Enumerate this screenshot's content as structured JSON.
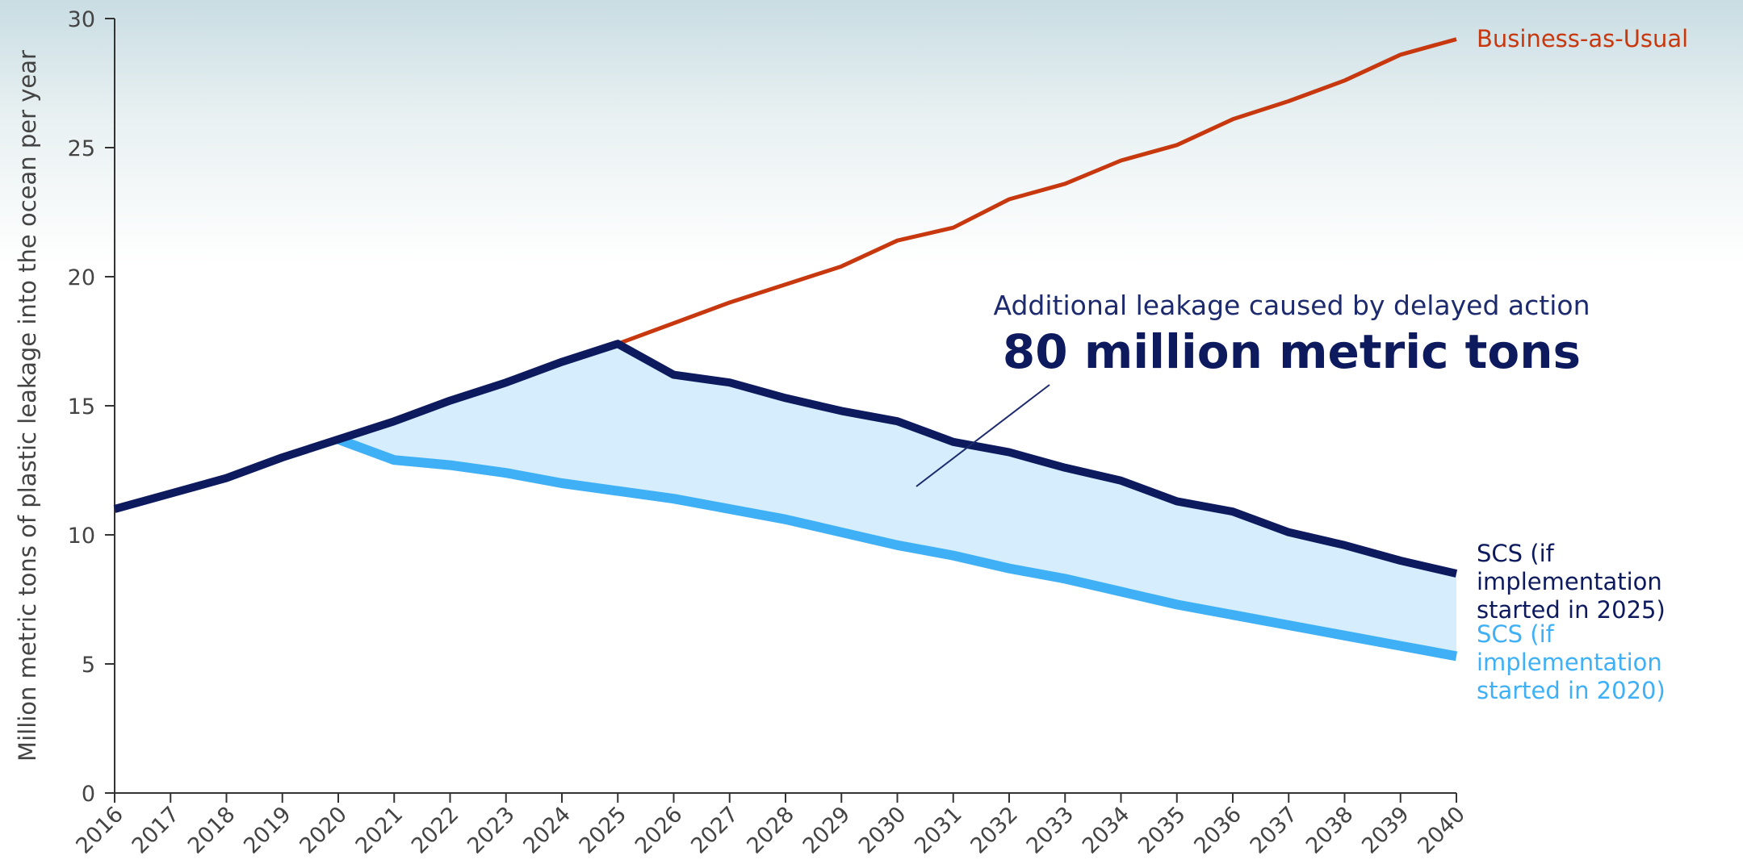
{
  "chart_data": {
    "type": "line",
    "y_label": "Million metric tons of plastic leakage into the ocean per year",
    "annotation": "Additional leakage caused by delayed action",
    "annotation_value": "80 million metric tons",
    "x": [
      2016,
      2017,
      2018,
      2019,
      2020,
      2021,
      2022,
      2023,
      2024,
      2025,
      2026,
      2027,
      2028,
      2029,
      2030,
      2031,
      2032,
      2033,
      2034,
      2035,
      2036,
      2037,
      2038,
      2039,
      2040
    ],
    "xlim": [
      2016,
      2040
    ],
    "xticks": [
      2016,
      2017,
      2018,
      2019,
      2020,
      2021,
      2022,
      2023,
      2024,
      2025,
      2026,
      2027,
      2028,
      2029,
      2030,
      2031,
      2032,
      2033,
      2034,
      2035,
      2036,
      2037,
      2038,
      2039,
      2040
    ],
    "ylim": [
      0,
      30
    ],
    "yticks": [
      0,
      5,
      10,
      15,
      20,
      25,
      30
    ],
    "fill_between_color": "#d5edfc",
    "series": [
      {
        "name": "Business-as-Usual",
        "color": "#c8380e",
        "values": [
          11.0,
          11.6,
          12.2,
          13.0,
          13.7,
          14.4,
          15.2,
          15.9,
          16.7,
          17.4,
          18.2,
          19.0,
          19.7,
          20.4,
          21.4,
          21.9,
          23.0,
          23.6,
          24.5,
          25.1,
          26.1,
          26.8,
          27.6,
          28.6,
          29.2
        ]
      },
      {
        "name": "SCS (if implementation started in 2025)",
        "color": "#0d1a5e",
        "values": [
          11.0,
          11.6,
          12.2,
          13.0,
          13.7,
          14.4,
          15.2,
          15.9,
          16.7,
          17.4,
          16.2,
          15.9,
          15.3,
          14.8,
          14.4,
          13.6,
          13.2,
          12.6,
          12.1,
          11.3,
          10.9,
          10.1,
          9.6,
          9.0,
          8.5
        ]
      },
      {
        "name": "SCS (if implementation started in 2020)",
        "color": "#3fb0f5",
        "values": [
          null,
          null,
          null,
          null,
          13.7,
          12.9,
          12.7,
          12.4,
          12.0,
          11.7,
          11.4,
          11.0,
          10.6,
          10.1,
          9.6,
          9.2,
          8.7,
          8.3,
          7.8,
          7.3,
          6.9,
          6.5,
          6.1,
          5.7,
          5.3
        ]
      }
    ]
  }
}
